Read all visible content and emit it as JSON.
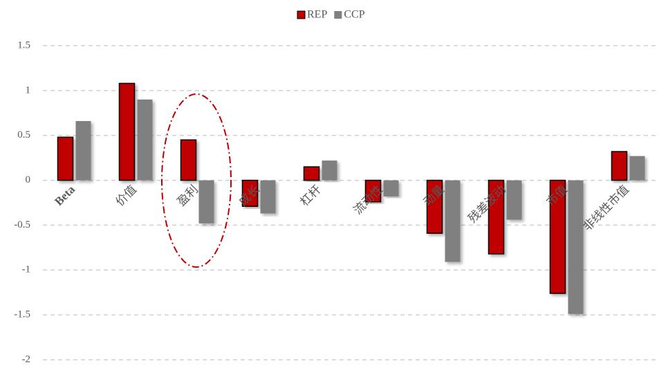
{
  "chart_data": {
    "type": "bar",
    "categories": [
      "Beta",
      "价值",
      "盈利",
      "成长",
      "杠杆",
      "流动性",
      "动量",
      "残差波动",
      "市值",
      "非线性市值"
    ],
    "series": [
      {
        "name": "REP",
        "color": "#c00000",
        "values": [
          0.48,
          1.08,
          0.45,
          -0.29,
          0.15,
          -0.24,
          -0.59,
          -0.82,
          -1.26,
          0.32
        ]
      },
      {
        "name": "CCP",
        "color": "#808080",
        "values": [
          0.66,
          0.9,
          -0.48,
          -0.37,
          0.22,
          -0.18,
          -0.91,
          -0.44,
          -1.49,
          0.27
        ]
      }
    ],
    "ylim": [
      -2,
      1.5
    ],
    "yticks": [
      1.5,
      1,
      0.5,
      0,
      -0.5,
      -1,
      -1.5,
      -2
    ],
    "grid": true,
    "legend": "top"
  }
}
